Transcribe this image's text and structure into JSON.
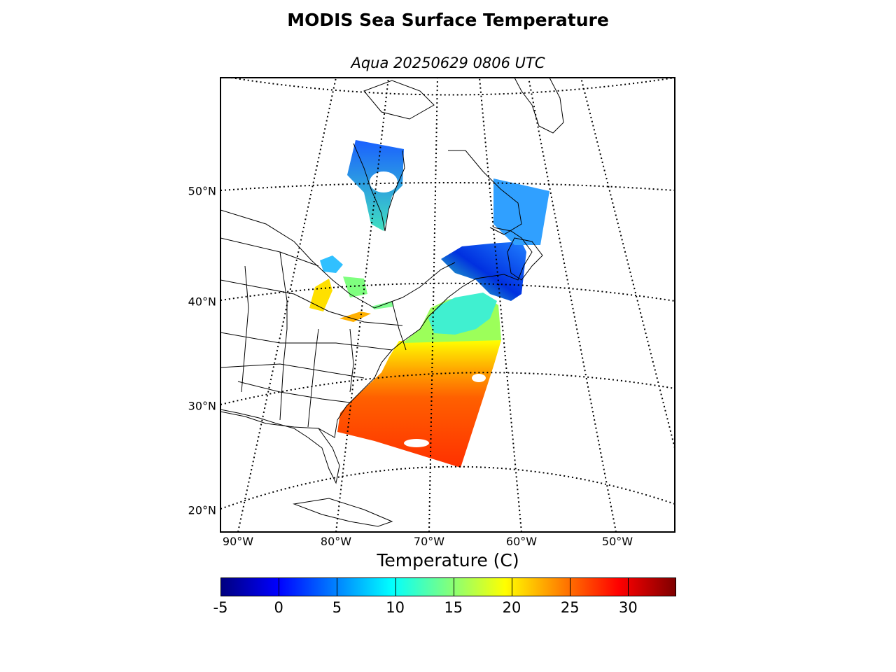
{
  "title": "MODIS Sea Surface Temperature",
  "subtitle": "Aqua 20250629 0806 UTC",
  "latitude_labels": [
    "20°N",
    "30°N",
    "40°N",
    "50°N"
  ],
  "longitude_labels": [
    "90°W",
    "80°W",
    "70°W",
    "60°W",
    "50°W"
  ],
  "colorbar": {
    "label": "Temperature (C)",
    "min": -5,
    "max": 34,
    "ticks": [
      "-5",
      "0",
      "5",
      "10",
      "15",
      "20",
      "25",
      "30"
    ],
    "colormap": "jet",
    "colors": [
      "#00007f",
      "#0000ff",
      "#007fff",
      "#00ffff",
      "#7fff7f",
      "#ffff00",
      "#ff7f00",
      "#ff0000",
      "#7f0000"
    ]
  },
  "map": {
    "projection": "conic",
    "graticule_style": "dotted",
    "land_color": "#ffffff",
    "coastline_color": "#000000"
  }
}
